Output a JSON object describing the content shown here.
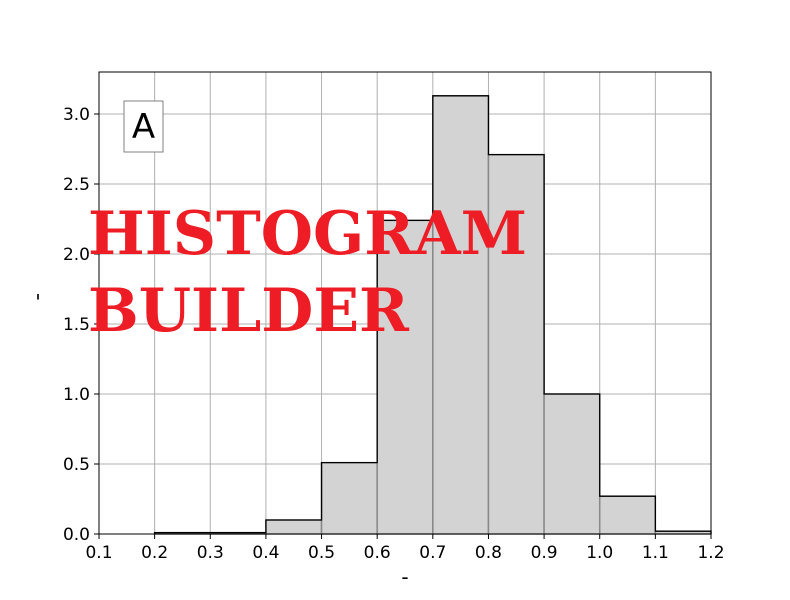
{
  "chart_data": {
    "type": "bar",
    "panel_label": "A",
    "xlabel": "-",
    "ylabel": "'",
    "xlim": [
      0.1,
      1.2
    ],
    "ylim": [
      0.0,
      3.3
    ],
    "grid": true,
    "x_ticks": [
      "0.1",
      "0.2",
      "0.3",
      "0.4",
      "0.5",
      "0.6",
      "0.7",
      "0.8",
      "0.9",
      "1.0",
      "1.1",
      "1.2"
    ],
    "y_ticks": [
      "0.0",
      "0.5",
      "1.0",
      "1.5",
      "2.0",
      "2.5",
      "3.0"
    ],
    "bins": [
      {
        "x0": 0.2,
        "x1": 0.3,
        "value": 0.01
      },
      {
        "x0": 0.3,
        "x1": 0.4,
        "value": 0.01
      },
      {
        "x0": 0.4,
        "x1": 0.5,
        "value": 0.1
      },
      {
        "x0": 0.5,
        "x1": 0.6,
        "value": 0.51
      },
      {
        "x0": 0.6,
        "x1": 0.7,
        "value": 2.24
      },
      {
        "x0": 0.7,
        "x1": 0.8,
        "value": 3.13
      },
      {
        "x0": 0.8,
        "x1": 0.9,
        "value": 2.71
      },
      {
        "x0": 0.9,
        "x1": 1.0,
        "value": 1.0
      },
      {
        "x0": 1.0,
        "x1": 1.1,
        "value": 0.27
      },
      {
        "x0": 1.1,
        "x1": 1.2,
        "value": 0.02
      }
    ],
    "colors": {
      "bar_fill": "#d3d3d3",
      "bar_edge": "#888888",
      "step_line": "#000000",
      "grid": "#b0b0b0"
    }
  },
  "watermark": {
    "line1": "HISTOGRAM",
    "line2": "BUILDER",
    "color": "#ee1c25"
  }
}
